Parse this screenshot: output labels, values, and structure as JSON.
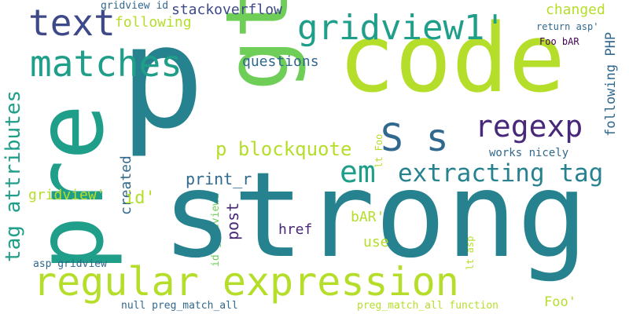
{
  "words": {
    "strong": "strong",
    "p": "p",
    "code": "code",
    "pre": "pre",
    "gt": "gt",
    "regular_expression": "regular expression",
    "matches": "matches",
    "text": "text",
    "gridview1_q": "gridview1'",
    "regexp": "regexp",
    "s_s": "S s",
    "em": "em",
    "extracting_tag": "extracting tag",
    "p_blockquote": "p blockquote",
    "tag_attributes": "tag attributes",
    "stackoverflow": "stackoverflow",
    "following": "following",
    "changed": "changed",
    "questions": "questions",
    "following_php": "following PHP",
    "gridview_id": "gridview id",
    "return_asp": "return asp'",
    "foo_bar": "Foo bAR",
    "works_nicely": "works nicely",
    "created": "created",
    "print_r": "print_r",
    "gridview_q": "gridview'",
    "id_q": "id'",
    "post": "post",
    "href": "href",
    "bar_q": "bAR'",
    "use": "use",
    "lt_foo": "lt Foo",
    "lt_asp": "lt asp",
    "id_gridview1": "id gridview1",
    "asp_gridview": "asp gridview",
    "null_preg_match_all": "null preg_match_all",
    "preg_match_all_function": "preg_match_all function",
    "foo_q": "Foo'"
  },
  "palette": [
    "#440154",
    "#482878",
    "#3e4989",
    "#31688e",
    "#26828e",
    "#1f9e89",
    "#35b779",
    "#6ece58",
    "#b5de2b"
  ]
}
